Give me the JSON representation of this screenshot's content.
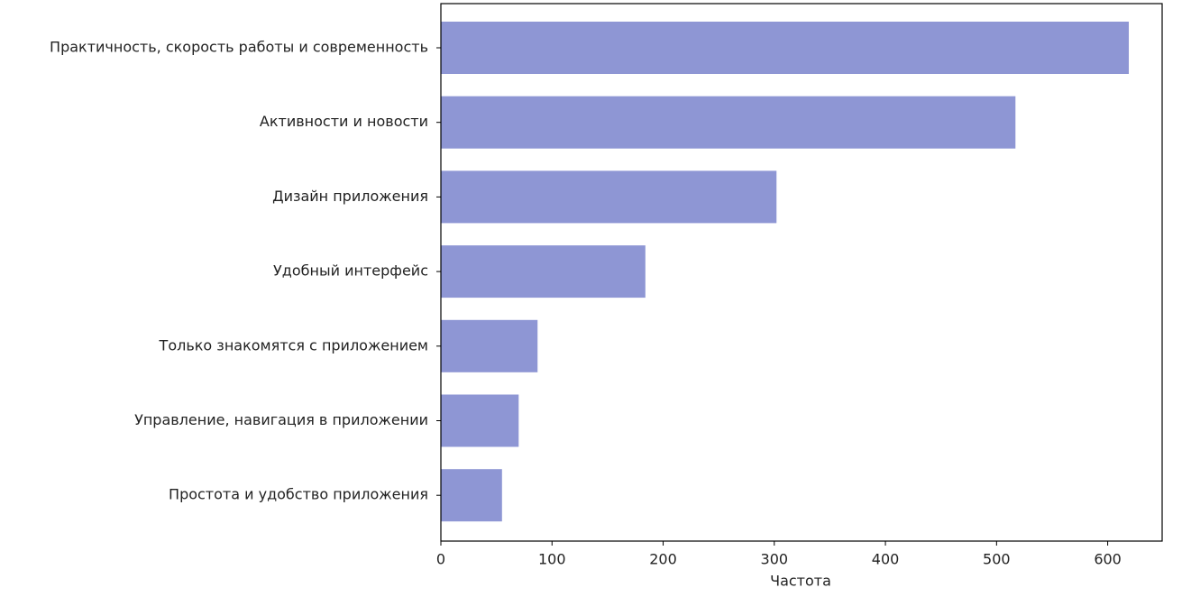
{
  "chart_data": {
    "type": "bar",
    "orientation": "horizontal",
    "xlabel": "Частота",
    "categories": [
      "Практичность, скорость работы и современность",
      "Активности и новости",
      "Дизайн приложения",
      "Удобный интерфейс",
      "Только знакомятся с приложением",
      "Управление, навигация в приложении",
      "Простота и удобство приложения"
    ],
    "values": [
      619,
      517,
      302,
      184,
      87,
      70,
      55
    ],
    "color": "#8e96d4",
    "xlim": [
      0,
      649
    ],
    "xticks": [
      0,
      100,
      200,
      300,
      400,
      500,
      600
    ],
    "grid": false
  }
}
